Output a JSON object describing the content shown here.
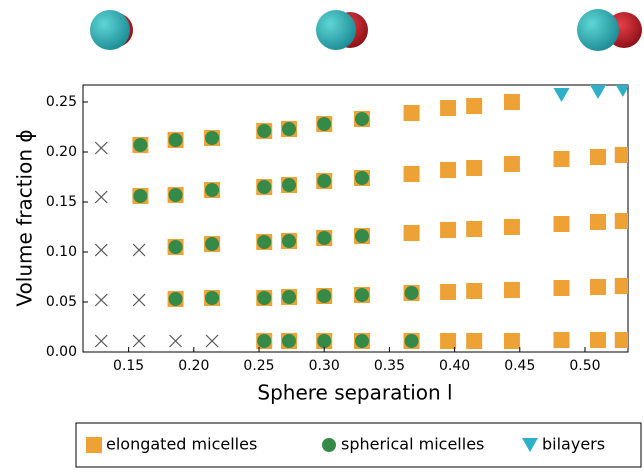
{
  "chart_data": {
    "type": "scatter",
    "xlabel": "Sphere separation l",
    "ylabel": "Volume fraction ϕ",
    "xlim": [
      0.115,
      0.533
    ],
    "ylim": [
      0,
      0.267
    ],
    "xticks": [
      0.15,
      {
        "value": 0.2,
        "label": "0.20"
      },
      0.25,
      {
        "value": 0.3,
        "label": "0.30"
      },
      0.35,
      {
        "value": 0.4,
        "label": "0.40"
      },
      0.45,
      {
        "value": 0.5,
        "label": "0.50"
      }
    ],
    "yticks": [
      {
        "value": 0,
        "label": "0.00"
      },
      0.05,
      {
        "value": 0.1,
        "label": "0.10"
      },
      0.15,
      {
        "value": 0.2,
        "label": "0.20"
      },
      0.25
    ],
    "legend": "bottom",
    "series": [
      {
        "marker": "x",
        "color": "#555555",
        "x": [
          0.129,
          0.129,
          0.129,
          0.129,
          0.129,
          0.158,
          0.158,
          0.158,
          0.186,
          0.214
        ],
        "values": [
          0.204,
          0.155,
          0.102,
          0.052,
          0.011,
          0.102,
          0.052,
          0.011,
          0.011,
          0.011
        ]
      },
      {
        "name": "elongated micelles",
        "marker": "square",
        "color": "#eea236",
        "x": [
          0.159,
          0.159,
          0.186,
          0.186,
          0.186,
          0.186,
          0.214,
          0.214,
          0.214,
          0.214,
          0.254,
          0.254,
          0.254,
          0.254,
          0.254,
          0.273,
          0.273,
          0.273,
          0.273,
          0.273,
          0.3,
          0.3,
          0.3,
          0.3,
          0.3,
          0.329,
          0.329,
          0.329,
          0.329,
          0.329,
          0.367,
          0.367,
          0.367,
          0.367,
          0.367,
          0.395,
          0.395,
          0.395,
          0.395,
          0.395,
          0.415,
          0.415,
          0.415,
          0.415,
          0.415,
          0.444,
          0.444,
          0.444,
          0.444,
          0.444,
          0.482,
          0.482,
          0.482,
          0.482,
          0.51,
          0.51,
          0.51,
          0.51,
          0.529,
          0.529,
          0.529,
          0.529
        ],
        "values": [
          0.207,
          0.156,
          0.212,
          0.157,
          0.105,
          0.053,
          0.214,
          0.162,
          0.108,
          0.054,
          0.221,
          0.165,
          0.11,
          0.054,
          0.011,
          0.223,
          0.167,
          0.111,
          0.055,
          0.011,
          0.228,
          0.171,
          0.114,
          0.056,
          0.011,
          0.233,
          0.174,
          0.116,
          0.057,
          0.011,
          0.239,
          0.178,
          0.119,
          0.059,
          0.011,
          0.244,
          0.182,
          0.122,
          0.06,
          0.011,
          0.246,
          0.184,
          0.123,
          0.061,
          0.011,
          0.25,
          0.188,
          0.125,
          0.062,
          0.011,
          0.193,
          0.128,
          0.064,
          0.012,
          0.195,
          0.13,
          0.065,
          0.012,
          0.197,
          0.131,
          0.066,
          0.012
        ]
      },
      {
        "name": "spherical micelles",
        "marker": "circle",
        "color": "#358a48",
        "x": [
          0.159,
          0.159,
          0.186,
          0.186,
          0.186,
          0.186,
          0.214,
          0.214,
          0.214,
          0.214,
          0.254,
          0.254,
          0.254,
          0.254,
          0.254,
          0.273,
          0.273,
          0.273,
          0.273,
          0.273,
          0.3,
          0.3,
          0.3,
          0.3,
          0.3,
          0.329,
          0.329,
          0.329,
          0.329,
          0.329,
          0.367,
          0.367
        ],
        "values": [
          0.207,
          0.156,
          0.212,
          0.157,
          0.105,
          0.053,
          0.214,
          0.162,
          0.108,
          0.054,
          0.221,
          0.165,
          0.11,
          0.054,
          0.011,
          0.223,
          0.167,
          0.111,
          0.055,
          0.011,
          0.228,
          0.171,
          0.114,
          0.056,
          0.011,
          0.233,
          0.174,
          0.116,
          0.057,
          0.011,
          0.059,
          0.011
        ]
      },
      {
        "name": "bilayers",
        "marker": "triangle-down",
        "color": "#2eb0c8",
        "x": [
          0.482,
          0.51,
          0.529
        ],
        "values": [
          0.257,
          0.26,
          0.262
        ]
      }
    ]
  }
}
